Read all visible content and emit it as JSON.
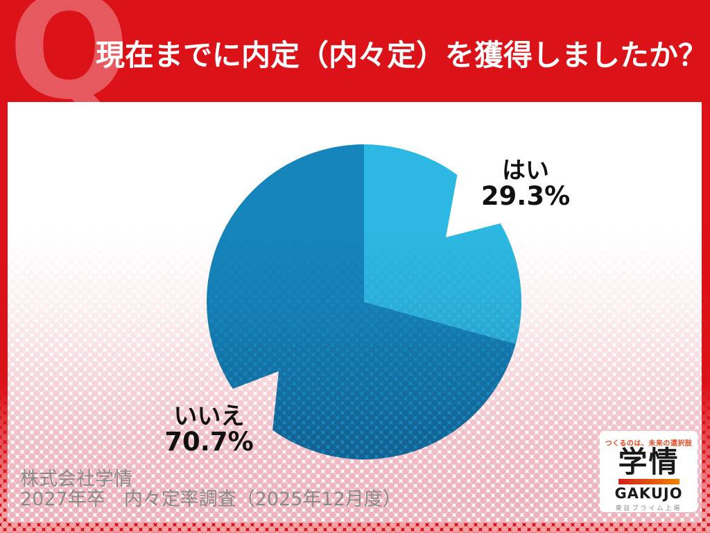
{
  "header": {
    "q": "Q",
    "title": "現在までに内定（内々定）を獲得しましたか？"
  },
  "chart_data": {
    "type": "pie",
    "title": "現在までに内定（内々定）を獲得しましたか？",
    "categories": [
      "はい",
      "いいえ"
    ],
    "values": [
      29.3,
      70.7
    ],
    "unit": "%",
    "colors": [
      "#2CB8E2",
      "#1585BC"
    ],
    "start_angle_deg": 0,
    "direction": "clockwise",
    "legend_position": "callout-labels",
    "labels": [
      {
        "name": "はい",
        "value_text": "29.3%"
      },
      {
        "name": "いいえ",
        "value_text": "70.7%"
      }
    ]
  },
  "pie_labels": {
    "yes": {
      "name": "はい",
      "value": "29.3%"
    },
    "no": {
      "name": "いいえ",
      "value": "70.7%"
    }
  },
  "source": {
    "company": "株式会社学情",
    "survey": "2027年卒　内々定率調査（2025年12月度）"
  },
  "logo": {
    "tagline": "つくるのは、未来の選択肢",
    "name_jp": "学情",
    "name_en": "GAKUJO",
    "listing": "東証プライム上場"
  },
  "theme": {
    "red": "#DC1219",
    "light_blue": "#2CB8E2",
    "dark_blue": "#1585BC",
    "halftone_pink": "#EEB4BE",
    "text_gray": "#8A8A8A"
  }
}
